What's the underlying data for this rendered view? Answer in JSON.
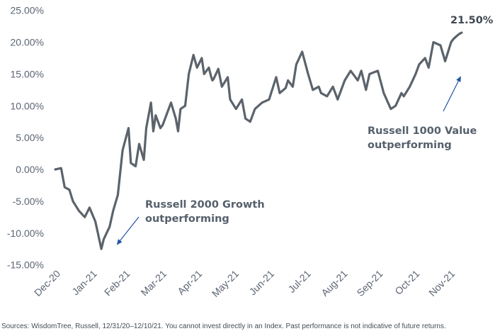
{
  "chart_data": {
    "type": "line",
    "title": "",
    "xlabel": "",
    "ylabel": "",
    "ylim": [
      -15,
      25
    ],
    "yticks": [
      "25.00%",
      "20.00%",
      "15.00%",
      "10.00%",
      "5.00%",
      "0.00%",
      "-5.00%",
      "-10.00%",
      "-15.00%"
    ],
    "x_tick_labels": [
      "Dec-20",
      "Jan-21",
      "Feb-21",
      "Mar-21",
      "Apr-21",
      "May-21",
      "Jun-21",
      "Jul-21",
      "Aug-21",
      "Sep-21",
      "Oct-21",
      "Nov-21"
    ],
    "grid": false,
    "line_color": "#5b636b",
    "arrow_color": "#2453a6",
    "series": [
      {
        "x": [
          "2020-12-31",
          "2021-01-05",
          "2021-01-08",
          "2021-01-12",
          "2021-01-15",
          "2021-01-20",
          "2021-01-25",
          "2021-01-29",
          "2021-02-03",
          "2021-02-08",
          "2021-02-10",
          "2021-02-15",
          "2021-02-18",
          "2021-02-22",
          "2021-02-26",
          "2021-03-03",
          "2021-03-05",
          "2021-03-09",
          "2021-03-12",
          "2021-03-16",
          "2021-03-18",
          "2021-03-22",
          "2021-03-24",
          "2021-03-26",
          "2021-03-30",
          "2021-04-01",
          "2021-04-05",
          "2021-04-08",
          "2021-04-12",
          "2021-04-14",
          "2021-04-16",
          "2021-04-20",
          "2021-04-23",
          "2021-04-27",
          "2021-04-30",
          "2021-05-04",
          "2021-05-06",
          "2021-05-10",
          "2021-05-12",
          "2021-05-13",
          "2021-05-14",
          "2021-05-18",
          "2021-05-21",
          "2021-05-26",
          "2021-05-28",
          "2021-06-02",
          "2021-06-07",
          "2021-06-10",
          "2021-06-14",
          "2021-06-18",
          "2021-06-24",
          "2021-06-30",
          "2021-07-06",
          "2021-07-09",
          "2021-07-14",
          "2021-07-16",
          "2021-07-20",
          "2021-07-23",
          "2021-07-28",
          "2021-08-02",
          "2021-08-06",
          "2021-08-11",
          "2021-08-13",
          "2021-08-18",
          "2021-08-23",
          "2021-08-27",
          "2021-09-02",
          "2021-09-07",
          "2021-09-13",
          "2021-09-16",
          "2021-09-20",
          "2021-09-23",
          "2021-09-30",
          "2021-10-05",
          "2021-10-11",
          "2021-10-15",
          "2021-10-20",
          "2021-10-22",
          "2021-10-27",
          "2021-11-01",
          "2021-11-04",
          "2021-11-09",
          "2021-11-12",
          "2021-11-16",
          "2021-11-22",
          "2021-11-26",
          "2021-12-01",
          "2021-12-03",
          "2021-12-06",
          "2021-12-08",
          "2021-12-10"
        ],
        "values": [
          0.0,
          0.2,
          -2.8,
          -3.2,
          -5.0,
          -6.5,
          -7.5,
          -6.0,
          -8.2,
          -12.5,
          -11.0,
          -9.0,
          -6.5,
          -4.0,
          3.0,
          6.5,
          1.0,
          0.5,
          4.0,
          1.5,
          6.5,
          10.5,
          6.0,
          8.5,
          6.5,
          7.0,
          9.0,
          10.5,
          8.0,
          6.0,
          9.5,
          10.0,
          15.0,
          18.0,
          16.0,
          17.5,
          15.0,
          16.0,
          14.5,
          14.0,
          14.2,
          15.8,
          13.0,
          14.5,
          11.0,
          9.5,
          11.0,
          8.0,
          7.5,
          9.5,
          10.5,
          11.0,
          14.5,
          12.0,
          12.8,
          14.0,
          13.0,
          16.5,
          18.5,
          15.0,
          12.5,
          13.0,
          12.0,
          11.5,
          13.0,
          11.0,
          14.0,
          15.5,
          14.0,
          15.5,
          12.5,
          15.0,
          15.5,
          12.0,
          9.5,
          10.0,
          12.0,
          11.5,
          13.0,
          15.0,
          16.5,
          17.5,
          16.0,
          20.0,
          19.5,
          17.0,
          20.0,
          20.5,
          21.0,
          21.3,
          21.5
        ]
      }
    ],
    "annotations": [
      {
        "lines": [
          "Russell 2000 Growth",
          "outperforming"
        ]
      },
      {
        "lines": [
          "Russell 1000 Value",
          "outperforming"
        ]
      }
    ],
    "end_label": "21.50%"
  },
  "footer": "Sources: WisdomTree, Russell, 12/31/20–12/10/21. You cannot invest directly in an Index. Past performance is not indicative of future returns."
}
